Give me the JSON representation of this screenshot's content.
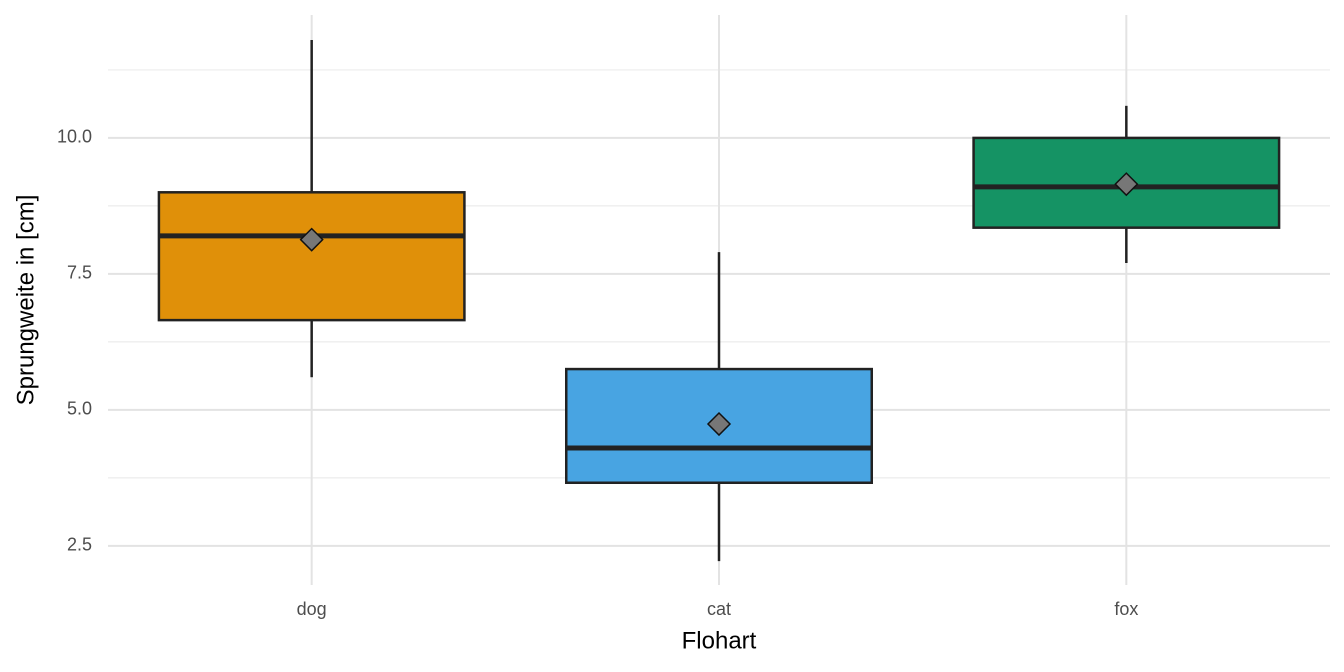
{
  "chart_data": {
    "type": "box",
    "x_label": "Flohart",
    "y_label": "Sprungweite in [cm]",
    "categories": [
      "dog",
      "cat",
      "fox"
    ],
    "colors": [
      "#E09009",
      "#48A4E2",
      "#159364"
    ],
    "boxes": [
      {
        "low": 5.6,
        "q1": 6.65,
        "median": 8.2,
        "q3": 9.0,
        "high": 11.8,
        "mean": 8.13
      },
      {
        "low": 2.22,
        "q1": 3.66,
        "median": 4.3,
        "q3": 5.75,
        "high": 7.9,
        "mean": 4.74
      },
      {
        "low": 7.7,
        "q1": 8.35,
        "median": 9.1,
        "q3": 10.0,
        "high": 10.59,
        "mean": 9.15
      }
    ],
    "ylim": [
      1.78,
      12.26
    ],
    "yticks": [
      2.5,
      {
        "value": 5,
        "label": "5.0"
      },
      7.5,
      {
        "value": 10,
        "label": "10.0"
      }
    ],
    "minor_yticks": [
      3.75,
      6.25,
      8.75,
      11.25
    ],
    "grid": true
  }
}
